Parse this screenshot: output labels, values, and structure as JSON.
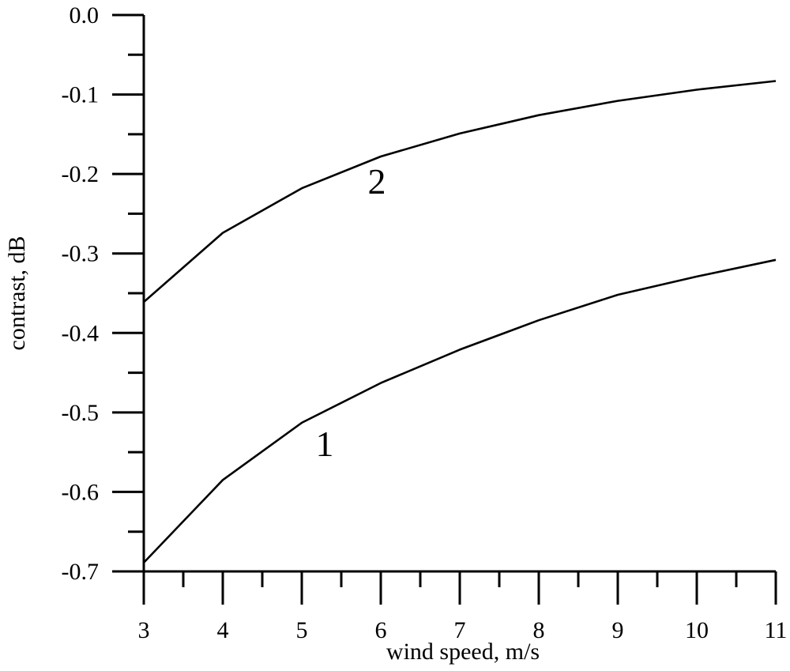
{
  "chart_data": {
    "type": "line",
    "title": "",
    "xlabel": "wind speed, m/s",
    "ylabel": "contrast, dB",
    "x": [
      3,
      4,
      5,
      6,
      7,
      8,
      9,
      10,
      11
    ],
    "series": [
      {
        "name": "1",
        "values": [
          -0.689,
          -0.585,
          -0.513,
          -0.463,
          -0.421,
          -0.384,
          -0.352,
          -0.329,
          -0.308
        ],
        "label_pos": {
          "x": 5.29,
          "y": -0.54
        }
      },
      {
        "name": "2",
        "values": [
          -0.361,
          -0.274,
          -0.218,
          -0.178,
          -0.149,
          -0.126,
          -0.108,
          -0.094,
          -0.083
        ],
        "label_pos": {
          "x": 5.95,
          "y": -0.21
        }
      }
    ],
    "xlim": [
      3,
      11
    ],
    "ylim": [
      -0.7,
      0.0
    ],
    "x_major_ticks": [
      3,
      4,
      5,
      6,
      7,
      8,
      9,
      10,
      11
    ],
    "x_minor_ticks": [
      3.5,
      4.5,
      5.5,
      6.5,
      7.5,
      8.5,
      9.5,
      10.5
    ],
    "y_major_ticks": [
      0.0,
      -0.1,
      -0.2,
      -0.3,
      -0.4,
      -0.5,
      -0.6,
      -0.7
    ],
    "y_minor_ticks": [
      -0.05,
      -0.15,
      -0.25,
      -0.35,
      -0.45,
      -0.55,
      -0.65
    ],
    "x_tick_labels": [
      "3",
      "4",
      "5",
      "6",
      "7",
      "8",
      "9",
      "10",
      "11"
    ],
    "y_tick_labels": [
      "0.0",
      "-0.1",
      "-0.2",
      "-0.3",
      "-0.4",
      "-0.5",
      "-0.6",
      "-0.7"
    ],
    "grid": false,
    "legend": "none",
    "line_color": "#000000",
    "background": "#ffffff"
  }
}
